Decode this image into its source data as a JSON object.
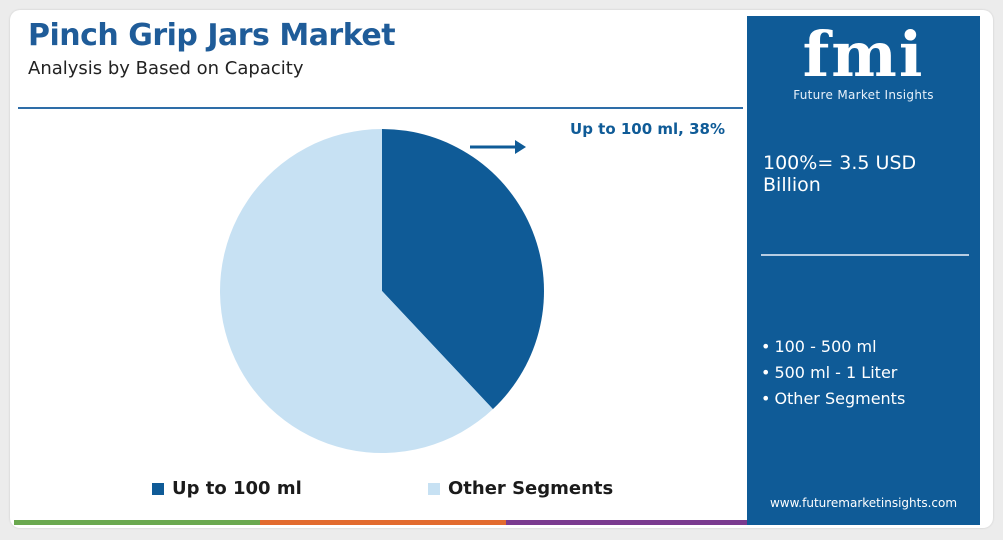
{
  "header": {
    "title": "Pinch Grip Jars Market",
    "subtitle": "Analysis by Based on Capacity"
  },
  "chart_data": {
    "type": "pie",
    "slices": [
      {
        "label": "Up to 100 ml",
        "value": 38,
        "color": "#0f5b97"
      },
      {
        "label": "Other Segments",
        "value": 62,
        "color": "#c7e1f3"
      }
    ],
    "callout": "Up to 100 ml, 38%",
    "legend": [
      "Up to 100 ml",
      "Other Segments"
    ],
    "legend_placement": "bottom"
  },
  "side_panel": {
    "logo_text": "fmi",
    "logo_caption": "Future Market Insights",
    "total_label": "100%= 3.5 USD Billion",
    "segments": [
      "100 - 500 ml",
      "500 ml - 1 Liter",
      "Other Segments"
    ],
    "bullet": "•",
    "website": "www.futuremarketinsights.com"
  },
  "colors": {
    "title": "#1f5c99",
    "panel_bg": "#0f5b97",
    "slice_primary": "#0f5b97",
    "slice_secondary": "#c7e1f3",
    "bar_green": "#6aa84f",
    "bar_orange": "#e26b2f",
    "bar_purple": "#7a3b8f"
  }
}
